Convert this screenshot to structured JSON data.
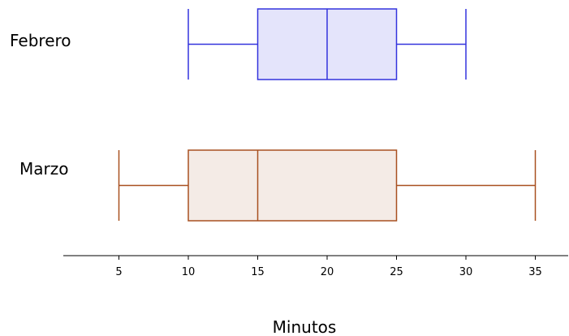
{
  "chart_data": {
    "type": "boxplot",
    "xlabel": "Minutos",
    "xlim": [
      0,
      37
    ],
    "xticks": [
      5,
      10,
      15,
      20,
      25,
      30,
      35
    ],
    "grid": false,
    "series": [
      {
        "name": "Febrero",
        "min": 10,
        "q1": 15,
        "median": 20,
        "q3": 25,
        "max": 30,
        "stroke": "#3333dd",
        "fill": "#e4e4fb"
      },
      {
        "name": "Marzo",
        "min": 5,
        "q1": 10,
        "median": 15,
        "q3": 25,
        "max": 35,
        "stroke": "#a85020",
        "fill": "#f4ebe6"
      }
    ]
  }
}
